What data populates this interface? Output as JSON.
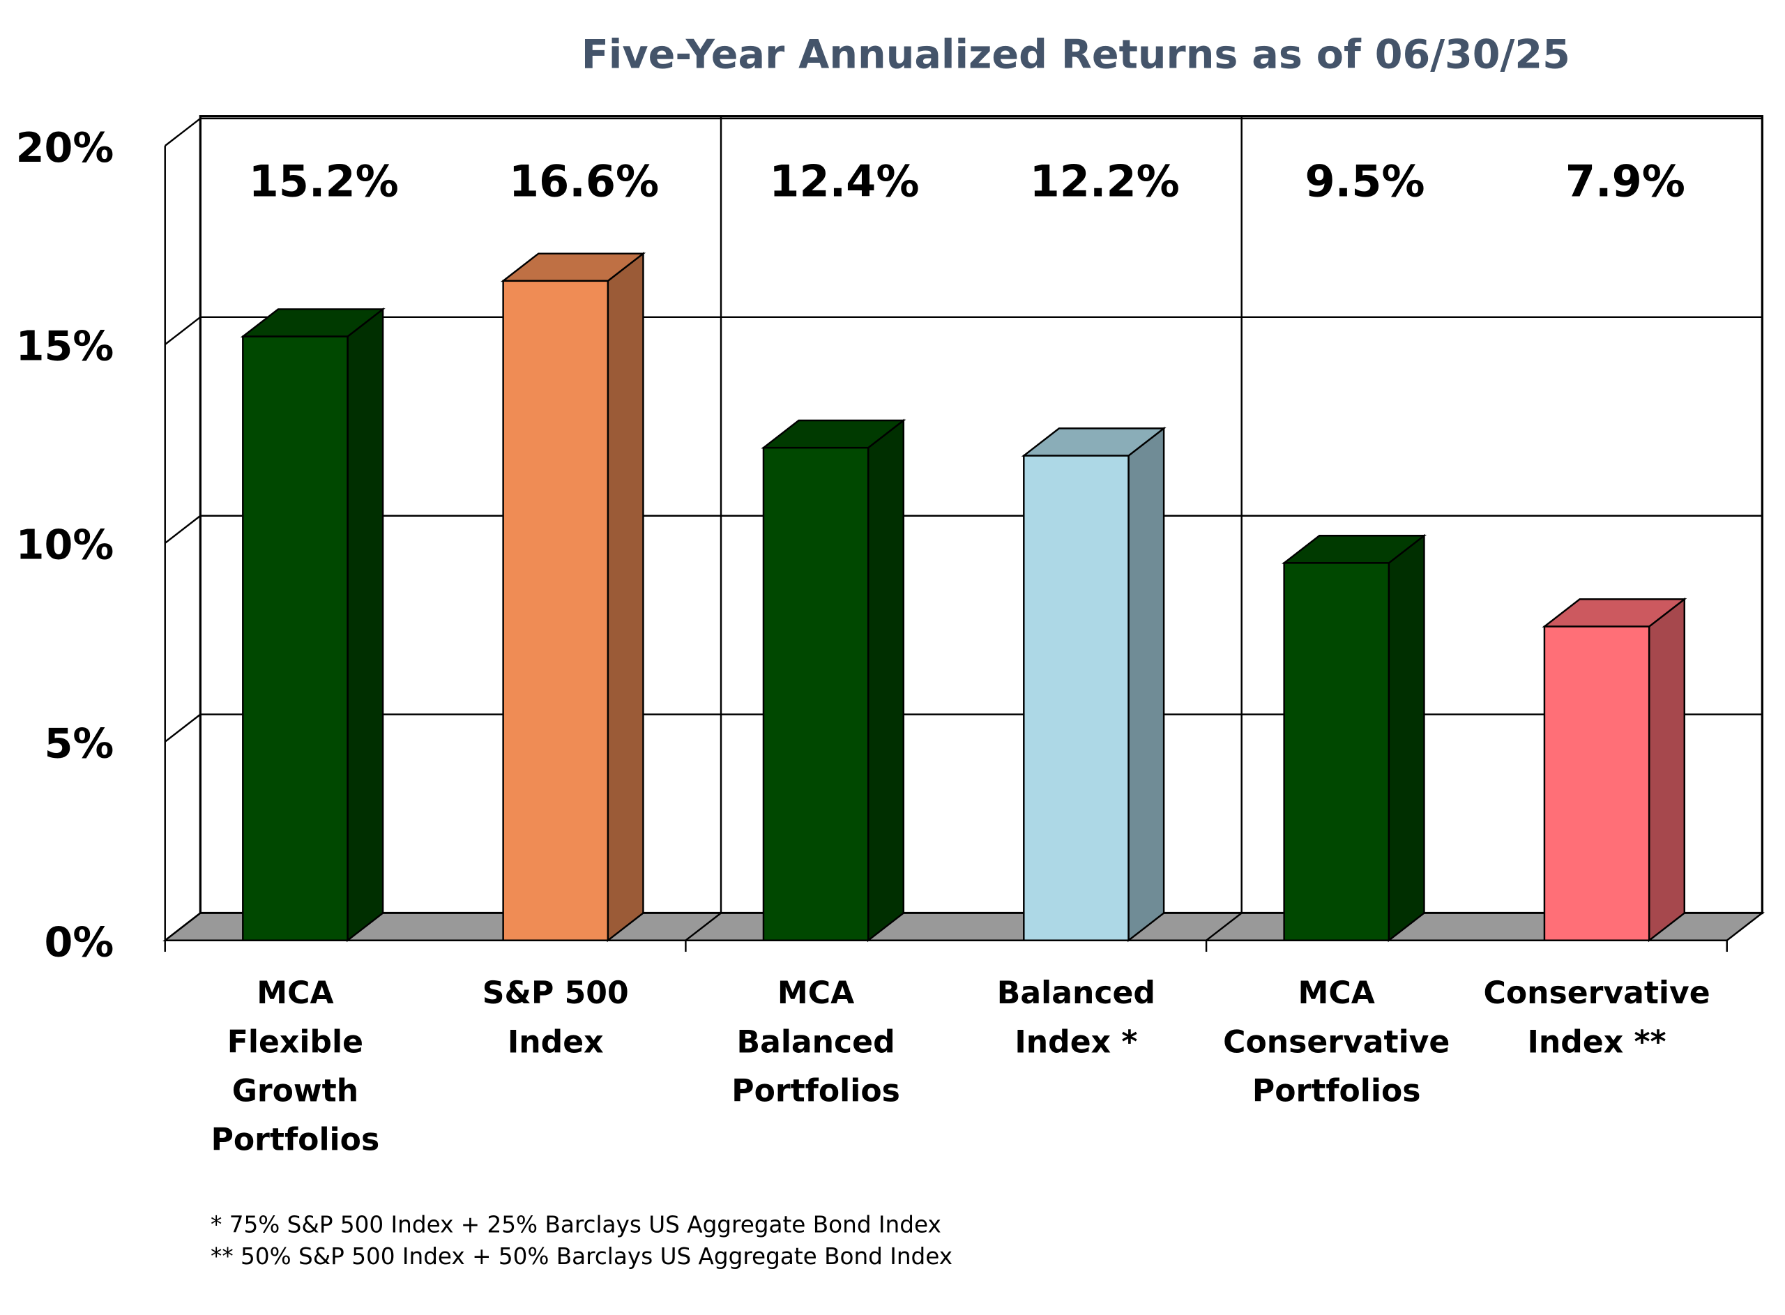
{
  "chart_data": {
    "type": "bar3d",
    "title": "Five-Year Annualized Returns as of 06/30/25",
    "categories": [
      "MCA\nFlexible\nGrowth\nPortfolios",
      "S&P 500\nIndex",
      "MCA\nBalanced\nPortfolios",
      "Balanced\nIndex *",
      "MCA\nConservative\nPortfolios",
      "Conservative\nIndex **"
    ],
    "values": [
      15.2,
      16.6,
      12.4,
      12.2,
      9.5,
      7.9
    ],
    "value_labels": [
      "15.2%",
      "16.6%",
      "12.4%",
      "12.2%",
      "9.5%",
      "7.9%"
    ],
    "colors": [
      "#004800",
      "#ef8c55",
      "#004800",
      "#add8e6",
      "#004800",
      "#ff6f77"
    ],
    "ylim": [
      0,
      20
    ],
    "yticks": [
      {
        "value": 0,
        "label": "0%"
      },
      {
        "value": 5,
        "label": "5%"
      },
      {
        "value": 10,
        "label": "10%"
      },
      {
        "value": 15,
        "label": "15%"
      },
      {
        "value": 20,
        "label": "20%"
      }
    ],
    "grid": true,
    "footnotes": [
      "*   75% S&P 500 Index + 25% Barclays US Aggregate Bond Index",
      "** 50% S&P 500 Index + 50% Barclays US Aggregate Bond Index"
    ]
  }
}
